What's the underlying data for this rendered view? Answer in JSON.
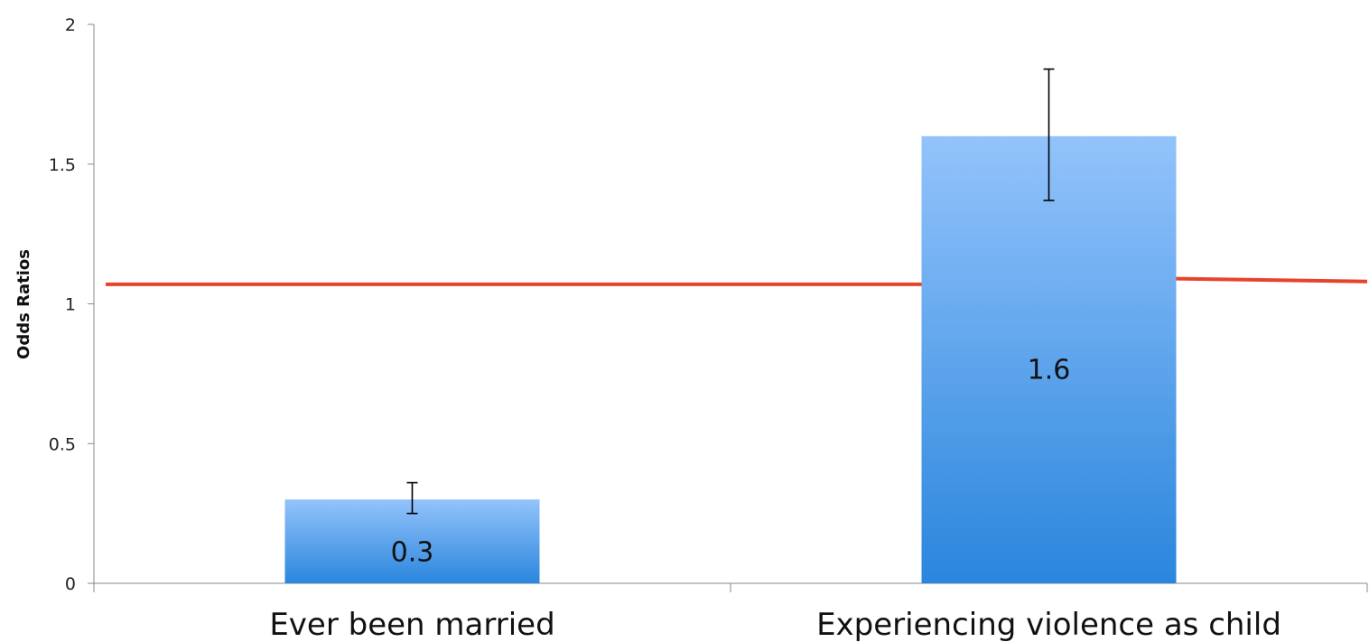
{
  "chart_data": {
    "type": "bar",
    "categories": [
      "Ever been married",
      "Experiencing violence as child"
    ],
    "values": [
      0.3,
      1.6
    ],
    "data_labels": [
      "0.3",
      "1.6"
    ],
    "error_bars": [
      {
        "low": 0.25,
        "high": 0.36
      },
      {
        "low": 1.37,
        "high": 1.84
      }
    ],
    "reference_line": {
      "segments": [
        [
          1.07,
          1.07
        ],
        [
          1.09,
          1.08
        ]
      ],
      "color": "#e8432a"
    },
    "title": "",
    "xlabel": "",
    "ylabel": "Odds Ratios",
    "ylim": [
      0,
      2
    ],
    "yticks": [
      0,
      0.5,
      1,
      1.5,
      2
    ],
    "ytick_labels": [
      "0",
      "0.5",
      "1",
      "1.5",
      "2"
    ],
    "grid": false,
    "legend": "none",
    "bar_color_top": "#93c3fb",
    "bar_color_bottom": "#2a86dd",
    "axis_color": "#888888"
  }
}
